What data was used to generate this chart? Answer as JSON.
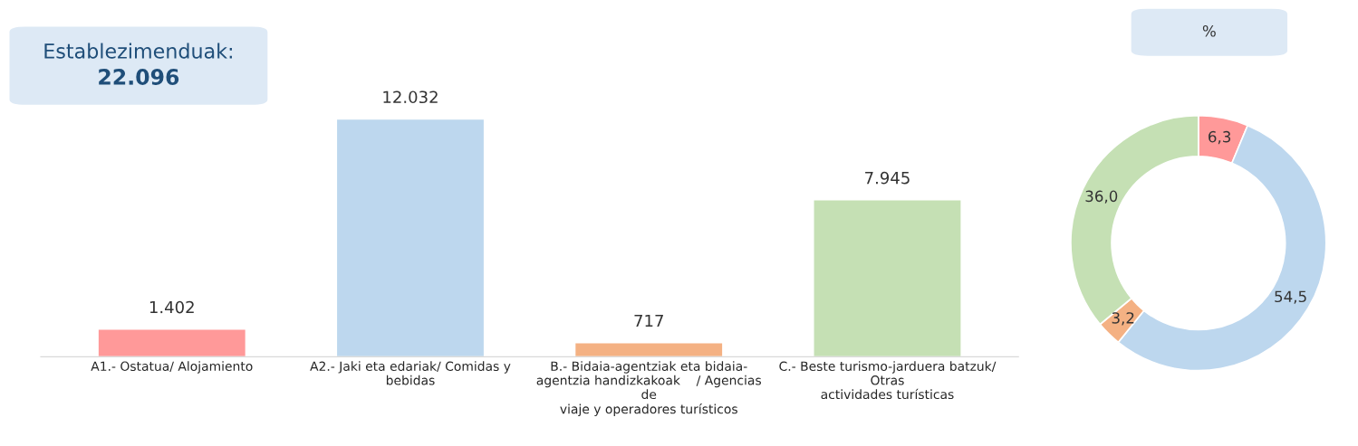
{
  "chart_data": [
    {
      "type": "bar",
      "title": "Establezimenduak:",
      "subtitle": "22.096",
      "categories": [
        "A1.- Ostatua/ Alojamiento",
        "A2.- Jaki eta edariak/ Comidas y\nbebidas",
        "B.- Bidaia-agentziak eta bidaia-\nagentzia handizkakoak    / Agencias\nde\nviaje y operadores turísticos",
        "C.- Beste turismo-jarduera batzuk/\nOtras\nactividades turísticas"
      ],
      "values": [
        1402,
        12032,
        717,
        7945
      ],
      "value_labels": [
        "1.402",
        "12.032",
        "717",
        "7.945"
      ],
      "colors": [
        "#ff9999",
        "#bdd7ee",
        "#f4b183",
        "#c5e0b4"
      ],
      "tick_labels": "x",
      "grid": false,
      "legend": false
    },
    {
      "type": "donut",
      "title": "%",
      "categories": [
        null,
        null,
        null,
        null
      ],
      "values": [
        6.3,
        54.5,
        3.2,
        36.0
      ],
      "value_labels": [
        "6,3",
        "54,5",
        "3,2",
        "36,0"
      ],
      "colors": [
        "#ff9999",
        "#bdd7ee",
        "#f4b183",
        "#c5e0b4"
      ],
      "legend": false
    }
  ]
}
